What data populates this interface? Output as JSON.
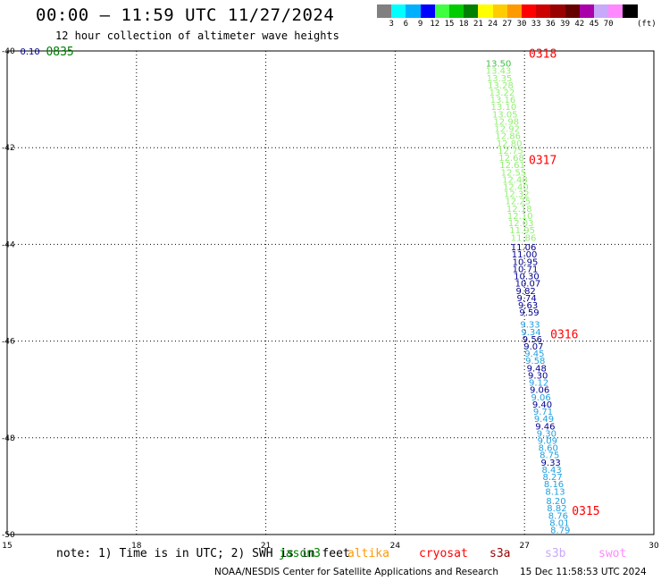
{
  "header": {
    "title": "00:00 – 11:59 UTC 11/27/2024",
    "subtitle": "12 hour collection of altimeter wave heights"
  },
  "legend": {
    "colors": [
      "#808080",
      "#00ffff",
      "#00b0ff",
      "#0000ff",
      "#40ff40",
      "#00cc00",
      "#008000",
      "#ffff00",
      "#ffcc00",
      "#ff9900",
      "#ff0000",
      "#cc0000",
      "#990000",
      "#660000",
      "#aa00aa",
      "#c8a8f8",
      "#ff88ff",
      "#000000"
    ],
    "labels": [
      "3",
      "6",
      "9",
      "12",
      "15",
      "18",
      "21",
      "24",
      "27",
      "30",
      "33",
      "36",
      "39",
      "42",
      "45",
      "70"
    ],
    "unit": "(ft)"
  },
  "footer": {
    "note": "note:  1) Time is in UTC; 2) SWH is in feet",
    "satellites": [
      {
        "name": "jason3",
        "color": "#008000"
      },
      {
        "name": "altika",
        "color": "#ff9900"
      },
      {
        "name": "cryosat",
        "color": "#ff0000"
      },
      {
        "name": "s3a",
        "color": "#990000"
      },
      {
        "name": "s3b",
        "color": "#c8a8f8"
      },
      {
        "name": "swot",
        "color": "#ff88ff"
      }
    ],
    "credit": "NOAA/NESDIS Center for Satellite Applications and Research",
    "timestamp": "15 Dec 11:58:53 UTC 2024"
  },
  "chart_data": {
    "type": "scatter",
    "title": "00:00 – 11:59 UTC 11/27/2024",
    "xlim": [
      15,
      30
    ],
    "ylim": [
      -50,
      -40
    ],
    "x_ticks": [
      "15",
      "18",
      "21",
      "24",
      "27",
      "30"
    ],
    "y_ticks": [
      "-40",
      "-42",
      "-44",
      "-46",
      "-48",
      "-50"
    ],
    "grid": true,
    "time_labels": [
      {
        "text": "0835",
        "lon": 15.9,
        "lat": -40.0,
        "color": "#008000"
      },
      {
        "text": "0318",
        "lon": 27.1,
        "lat": -40.05,
        "color": "#ff0000"
      },
      {
        "text": "0317",
        "lon": 27.1,
        "lat": -42.25,
        "color": "#ff0000"
      },
      {
        "text": "0316",
        "lon": 27.6,
        "lat": -45.85,
        "color": "#ff0000"
      },
      {
        "text": "0315",
        "lon": 28.1,
        "lat": -49.5,
        "color": "#ff0000"
      }
    ],
    "series": [
      {
        "name": "jason3",
        "color": "#008000",
        "points": [
          {
            "lon": 15.3,
            "lat": -40.0,
            "swh": "0.10",
            "color": "#000090"
          }
        ]
      },
      {
        "name": "cryosat",
        "color": "#ff0000",
        "points": [
          {
            "lon": 26.1,
            "lat": -40.25,
            "swh": "13.50",
            "color": "#40c040"
          },
          {
            "lon": 26.1,
            "lat": -40.4,
            "swh": "13.43",
            "color": "#90f070"
          },
          {
            "lon": 26.12,
            "lat": -40.55,
            "swh": "13.35",
            "color": "#90f070"
          },
          {
            "lon": 26.15,
            "lat": -40.7,
            "swh": "13.28",
            "color": "#90f070"
          },
          {
            "lon": 26.18,
            "lat": -40.85,
            "swh": "13.22",
            "color": "#90f070"
          },
          {
            "lon": 26.2,
            "lat": -41.0,
            "swh": "13.16",
            "color": "#90f070"
          },
          {
            "lon": 26.22,
            "lat": -41.15,
            "swh": "13.10",
            "color": "#90f070"
          },
          {
            "lon": 26.25,
            "lat": -41.3,
            "swh": "13.05",
            "color": "#90f070"
          },
          {
            "lon": 26.28,
            "lat": -41.45,
            "swh": "12.98",
            "color": "#90f070"
          },
          {
            "lon": 26.3,
            "lat": -41.6,
            "swh": "12.92",
            "color": "#90f070"
          },
          {
            "lon": 26.32,
            "lat": -41.75,
            "swh": "12.86",
            "color": "#90f070"
          },
          {
            "lon": 26.35,
            "lat": -41.9,
            "swh": "12.80",
            "color": "#90f070"
          },
          {
            "lon": 26.38,
            "lat": -42.05,
            "swh": "12.75",
            "color": "#90f070"
          },
          {
            "lon": 26.4,
            "lat": -42.2,
            "swh": "12.68",
            "color": "#90f070"
          },
          {
            "lon": 26.42,
            "lat": -42.35,
            "swh": "12.61",
            "color": "#90f070"
          },
          {
            "lon": 26.45,
            "lat": -42.5,
            "swh": "12.55",
            "color": "#90f070"
          },
          {
            "lon": 26.48,
            "lat": -42.65,
            "swh": "12.48",
            "color": "#90f070"
          },
          {
            "lon": 26.5,
            "lat": -42.8,
            "swh": "12.40",
            "color": "#90f070"
          },
          {
            "lon": 26.52,
            "lat": -42.95,
            "swh": "12.32",
            "color": "#90f070"
          },
          {
            "lon": 26.55,
            "lat": -43.1,
            "swh": "12.25",
            "color": "#90f070"
          },
          {
            "lon": 26.58,
            "lat": -43.25,
            "swh": "12.18",
            "color": "#90f070"
          },
          {
            "lon": 26.6,
            "lat": -43.4,
            "swh": "12.10",
            "color": "#90f070"
          },
          {
            "lon": 26.62,
            "lat": -43.55,
            "swh": "12.03",
            "color": "#90f070"
          },
          {
            "lon": 26.65,
            "lat": -43.7,
            "swh": "11.95",
            "color": "#90f070"
          },
          {
            "lon": 26.68,
            "lat": -43.85,
            "swh": "11.86",
            "color": "#90f070"
          },
          {
            "lon": 26.68,
            "lat": -44.05,
            "swh": "11.06",
            "color": "#000090"
          },
          {
            "lon": 26.7,
            "lat": -44.2,
            "swh": "11.00",
            "color": "#000090"
          },
          {
            "lon": 26.72,
            "lat": -44.35,
            "swh": "10.95",
            "color": "#000090"
          },
          {
            "lon": 26.72,
            "lat": -44.5,
            "swh": "10.71",
            "color": "#000090"
          },
          {
            "lon": 26.75,
            "lat": -44.65,
            "swh": "10.30",
            "color": "#000090"
          },
          {
            "lon": 26.78,
            "lat": -44.8,
            "swh": "10.07",
            "color": "#000090"
          },
          {
            "lon": 26.8,
            "lat": -44.95,
            "swh": "9.82",
            "color": "#000090"
          },
          {
            "lon": 26.82,
            "lat": -45.1,
            "swh": "9.74",
            "color": "#000090"
          },
          {
            "lon": 26.85,
            "lat": -45.25,
            "swh": "9.63",
            "color": "#000090"
          },
          {
            "lon": 26.88,
            "lat": -45.4,
            "swh": "9.59",
            "color": "#000090"
          },
          {
            "lon": 26.9,
            "lat": -45.65,
            "swh": "9.33",
            "color": "#20a0e0"
          },
          {
            "lon": 26.92,
            "lat": -45.8,
            "swh": "9.34",
            "color": "#20a0e0"
          },
          {
            "lon": 26.95,
            "lat": -45.95,
            "swh": "9.56",
            "color": "#000090"
          },
          {
            "lon": 26.98,
            "lat": -46.1,
            "swh": "9.07",
            "color": "#000090"
          },
          {
            "lon": 27.0,
            "lat": -46.25,
            "swh": "9.45",
            "color": "#20a0e0"
          },
          {
            "lon": 27.02,
            "lat": -46.4,
            "swh": "9.58",
            "color": "#20a0e0"
          },
          {
            "lon": 27.05,
            "lat": -46.55,
            "swh": "9.48",
            "color": "#000090"
          },
          {
            "lon": 27.08,
            "lat": -46.7,
            "swh": "9.30",
            "color": "#000090"
          },
          {
            "lon": 27.1,
            "lat": -46.85,
            "swh": "9.12",
            "color": "#20a0e0"
          },
          {
            "lon": 27.12,
            "lat": -47.0,
            "swh": "9.06",
            "color": "#000090"
          },
          {
            "lon": 27.15,
            "lat": -47.15,
            "swh": "9.06",
            "color": "#20a0e0"
          },
          {
            "lon": 27.18,
            "lat": -47.3,
            "swh": "9.40",
            "color": "#000090"
          },
          {
            "lon": 27.2,
            "lat": -47.45,
            "swh": "9.71",
            "color": "#20a0e0"
          },
          {
            "lon": 27.22,
            "lat": -47.6,
            "swh": "9.49",
            "color": "#20a0e0"
          },
          {
            "lon": 27.25,
            "lat": -47.75,
            "swh": "9.46",
            "color": "#000090"
          },
          {
            "lon": 27.28,
            "lat": -47.9,
            "swh": "9.30",
            "color": "#20a0e0"
          },
          {
            "lon": 27.3,
            "lat": -48.05,
            "swh": "9.09",
            "color": "#20a0e0"
          },
          {
            "lon": 27.32,
            "lat": -48.2,
            "swh": "8.60",
            "color": "#20a0e0"
          },
          {
            "lon": 27.35,
            "lat": -48.35,
            "swh": "8.75",
            "color": "#20a0e0"
          },
          {
            "lon": 27.38,
            "lat": -48.5,
            "swh": "9.33",
            "color": "#000090"
          },
          {
            "lon": 27.4,
            "lat": -48.65,
            "swh": "8.43",
            "color": "#20a0e0"
          },
          {
            "lon": 27.42,
            "lat": -48.8,
            "swh": "8.27",
            "color": "#20a0e0"
          },
          {
            "lon": 27.45,
            "lat": -48.95,
            "swh": "8.16",
            "color": "#20a0e0"
          },
          {
            "lon": 27.48,
            "lat": -49.1,
            "swh": "8.13",
            "color": "#20a0e0"
          },
          {
            "lon": 27.5,
            "lat": -49.3,
            "swh": "8.20",
            "color": "#20a0e0"
          },
          {
            "lon": 27.52,
            "lat": -49.45,
            "swh": "8.82",
            "color": "#20a0e0"
          },
          {
            "lon": 27.55,
            "lat": -49.6,
            "swh": "8.76",
            "color": "#20a0e0"
          },
          {
            "lon": 27.58,
            "lat": -49.75,
            "swh": "8.01",
            "color": "#20a0e0"
          },
          {
            "lon": 27.6,
            "lat": -49.9,
            "swh": "8.79",
            "color": "#20a0e0"
          }
        ]
      }
    ]
  }
}
